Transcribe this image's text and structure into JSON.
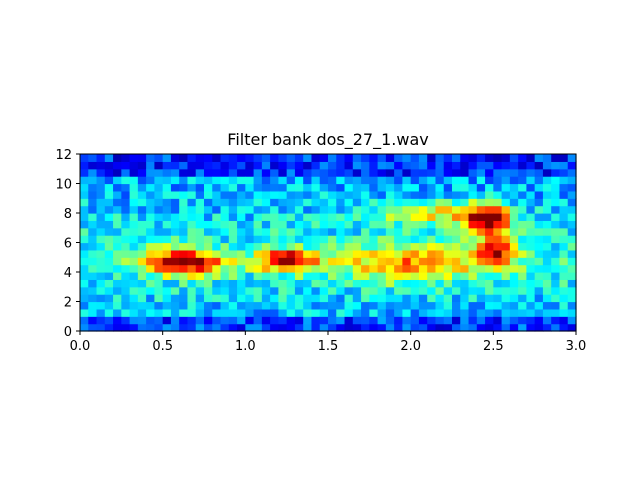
{
  "chart_data": {
    "type": "heatmap",
    "title": "Filter bank dos_27_1.wav",
    "xlabel": "",
    "ylabel": "",
    "xlim": [
      0,
      3
    ],
    "ylim": [
      0,
      12
    ],
    "xticks": [
      0,
      0.5,
      1,
      1.5,
      2,
      2.5,
      3
    ],
    "xtick_labels": [
      "0.0",
      "0.5",
      "1.0",
      "1.5",
      "2.0",
      "2.5",
      "3.0"
    ],
    "yticks": [
      0,
      2,
      4,
      6,
      8,
      10,
      12
    ],
    "ytick_labels": [
      "0",
      "2",
      "4",
      "6",
      "8",
      "10",
      "12"
    ],
    "colormap": "jet",
    "grid": false,
    "time_frames": 60,
    "filter_bands": 24,
    "energy_regions": [
      {
        "t_center": 0.62,
        "f_center": 4.7,
        "t_width": 0.24,
        "f_width": 0.8,
        "peak": 1.0
      },
      {
        "t_center": 1.25,
        "f_center": 4.8,
        "t_width": 0.17,
        "f_width": 0.7,
        "peak": 0.9
      },
      {
        "t_center": 2.47,
        "f_center": 7.6,
        "t_width": 0.14,
        "f_width": 1.0,
        "peak": 1.0
      },
      {
        "t_center": 2.52,
        "f_center": 5.4,
        "t_width": 0.13,
        "f_width": 1.0,
        "peak": 0.65
      },
      {
        "t_center": 2.0,
        "f_center": 4.6,
        "t_width": 0.45,
        "f_width": 1.2,
        "peak": 0.5
      },
      {
        "t_center": 2.1,
        "f_center": 8.0,
        "t_width": 0.3,
        "f_width": 0.8,
        "peak": 0.45
      }
    ]
  }
}
